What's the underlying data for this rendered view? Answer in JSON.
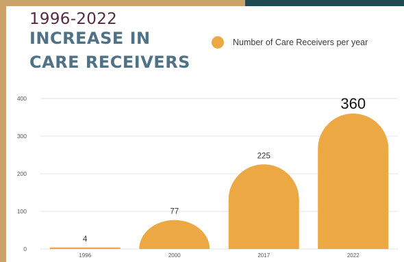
{
  "header": {
    "years": "1996-2022",
    "title_line1": "INCREASE IN",
    "title_line2": "CARE RECEIVERS"
  },
  "colors": {
    "bar": "#eca843",
    "title_years": "#5a2a3e",
    "title_main": "#4f7287",
    "frame": "#c9a36a",
    "frame_dark": "#1f4a52"
  },
  "chart_data": {
    "type": "bar",
    "categories": [
      "1996",
      "2000",
      "2017",
      "2022"
    ],
    "series": [
      {
        "name": "Number of Care Receivers per year",
        "values": [
          4,
          77,
          225,
          360
        ]
      }
    ],
    "data_labels": [
      "4",
      "77",
      "225",
      "360"
    ],
    "yticks": [
      "0",
      "100",
      "200",
      "300",
      "400"
    ],
    "ylim": [
      0,
      400
    ],
    "grid": true,
    "legend_position": "top-right"
  }
}
